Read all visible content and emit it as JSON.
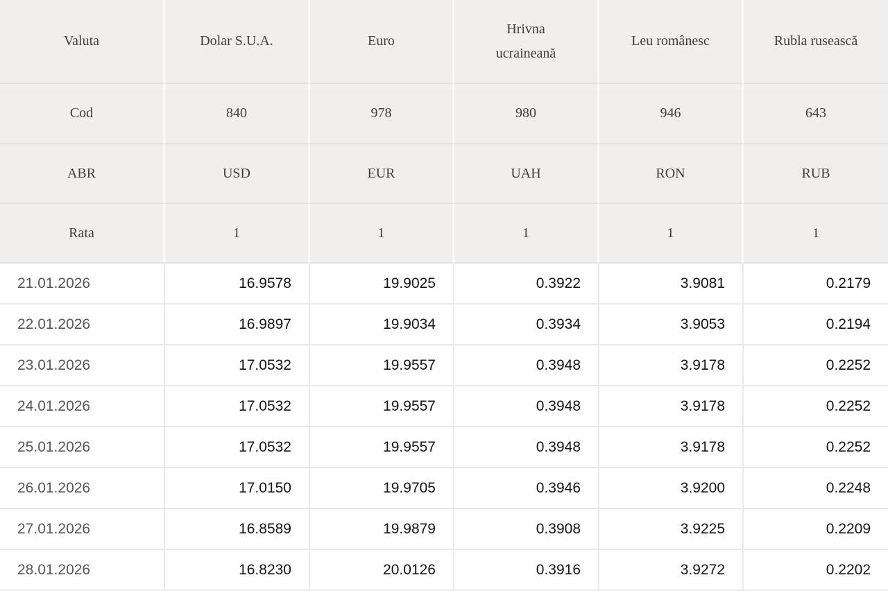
{
  "table": {
    "meta_rows": [
      {
        "label": "Valuta",
        "values": [
          "Dolar S.U.A.",
          "Euro",
          "Hrivna ucraineană",
          "Leu românesc",
          "Rubla rusească"
        ]
      },
      {
        "label": "Cod",
        "values": [
          "840",
          "978",
          "980",
          "946",
          "643"
        ]
      },
      {
        "label": "ABR",
        "values": [
          "USD",
          "EUR",
          "UAH",
          "RON",
          "RUB"
        ]
      },
      {
        "label": "Rata",
        "values": [
          "1",
          "1",
          "1",
          "1",
          "1"
        ]
      }
    ],
    "rate_rows": [
      {
        "date": "21.01.2026",
        "values": [
          "16.9578",
          "19.9025",
          "0.3922",
          "3.9081",
          "0.2179"
        ]
      },
      {
        "date": "22.01.2026",
        "values": [
          "16.9897",
          "19.9034",
          "0.3934",
          "3.9053",
          "0.2194"
        ]
      },
      {
        "date": "23.01.2026",
        "values": [
          "17.0532",
          "19.9557",
          "0.3948",
          "3.9178",
          "0.2252"
        ]
      },
      {
        "date": "24.01.2026",
        "values": [
          "17.0532",
          "19.9557",
          "0.3948",
          "3.9178",
          "0.2252"
        ]
      },
      {
        "date": "25.01.2026",
        "values": [
          "17.0532",
          "19.9557",
          "0.3948",
          "3.9178",
          "0.2252"
        ]
      },
      {
        "date": "26.01.2026",
        "values": [
          "17.0150",
          "19.9705",
          "0.3946",
          "3.9200",
          "0.2248"
        ]
      },
      {
        "date": "27.01.2026",
        "values": [
          "16.8589",
          "19.9879",
          "0.3908",
          "3.9225",
          "0.2209"
        ]
      },
      {
        "date": "28.01.2026",
        "values": [
          "16.8230",
          "20.0126",
          "0.3916",
          "3.9272",
          "0.2202"
        ]
      }
    ],
    "colors": {
      "header_bg": "#f0efee",
      "header_text": "#413f3d",
      "header_gap_vertical": "#fafaf9",
      "header_gap_horizontal": "#e4e2e0",
      "data_bg": "#ffffff",
      "data_grid": "#e9e9e9",
      "date_text": "#57575a",
      "value_text": "#141414"
    }
  }
}
